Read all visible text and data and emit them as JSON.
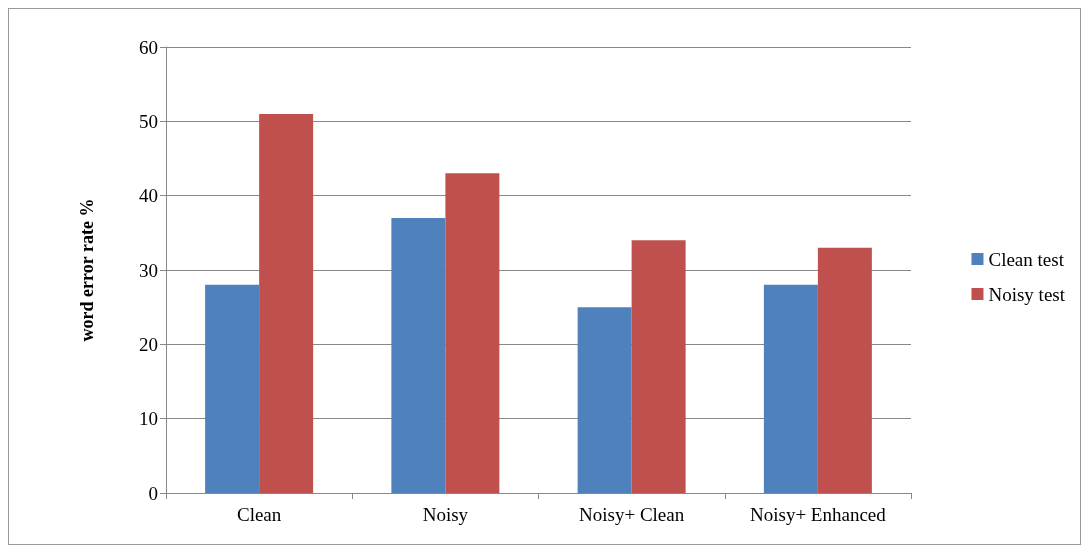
{
  "chart_data": {
    "type": "bar",
    "ylabel": "word error rate %",
    "categories": [
      "Clean",
      "Noisy",
      "Noisy+ Clean",
      "Noisy+ Enhanced"
    ],
    "series": [
      {
        "name": "Clean test",
        "color": "#4f81bd",
        "values": [
          28,
          37,
          25,
          28
        ]
      },
      {
        "name": "Noisy test",
        "color": "#c0504d",
        "values": [
          51,
          43,
          34,
          33
        ]
      }
    ],
    "ylim": [
      0,
      60
    ],
    "yticks": [
      0,
      10,
      20,
      30,
      40,
      50,
      60
    ],
    "grid": "y",
    "legend": "right"
  }
}
